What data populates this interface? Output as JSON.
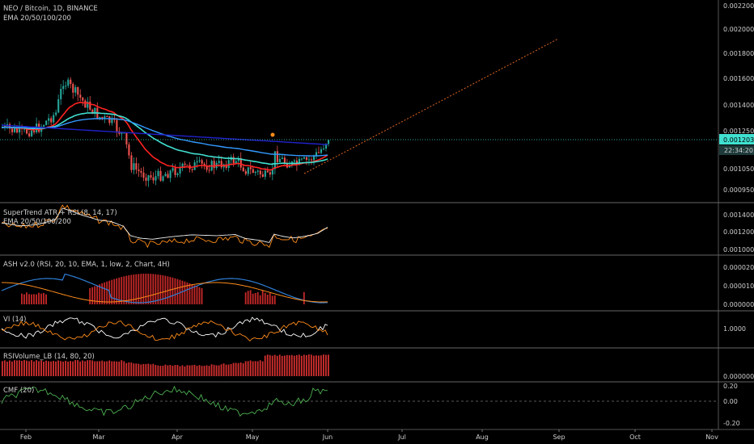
{
  "chart_data": [
    {
      "type": "candlestick",
      "title": "NEO / Bitcoin, 1D, BINANCE",
      "subtitle": "EMA 20/50/100/200",
      "x_ticks": [
        "Feb",
        "Mar",
        "Apr",
        "May",
        "Jun",
        "Jul",
        "Aug",
        "Sep",
        "Oct",
        "Nov"
      ],
      "y_ticks": [
        "0.002200",
        "0.002000",
        "0.001800",
        "0.001600",
        "0.001400",
        "0.001250",
        "0.001050",
        "0.000950"
      ],
      "ylim": [
        0.00089,
        0.00222
      ],
      "price_label": "0.001203",
      "time_label": "22:34:20",
      "last_price": 0.001203,
      "projection": {
        "from": [
          0.00099,
          "late May"
        ],
        "to": [
          0.0019,
          "early Sep"
        ]
      },
      "colors": {
        "up": "#26a69a",
        "down": "#ef5350",
        "ema20": "#ff2222",
        "ema50": "#40e0d0",
        "ema100": "#3399ff",
        "ema200": "#2222cc",
        "projection": "#e0641e"
      }
    },
    {
      "type": "line",
      "title": "SuperTrend ATR + RSI (8, 14, 17)",
      "subtitle": "EMA 20/50/100/200",
      "y_ticks": [
        "0.001400",
        "0.001200",
        "0.001000"
      ],
      "colors": {
        "rsi": "#ff8c1a",
        "ema": "#f0f0f0"
      }
    },
    {
      "type": "bar",
      "title": "ASH v2.0 (RSI, 20, 10, EMA, 1, low, 2, Chart, 4H)",
      "y_ticks": [
        "0.000020",
        "0.000010",
        "0.000000"
      ],
      "colors": {
        "hist": "#c62828",
        "bull": "#2f7fd6",
        "bear": "#ff8c1a"
      }
    },
    {
      "type": "line",
      "title": "VI (14)",
      "y_ticks": [
        "1.0000"
      ],
      "colors": {
        "plus": "#ffffff",
        "minus": "#ff8c1a"
      }
    },
    {
      "type": "bar",
      "title": "RSIVolume_LB (14, 80, 20)",
      "y_ticks": [
        "0.000000"
      ],
      "colors": {
        "bar": "#d32f2f"
      }
    },
    {
      "type": "line",
      "title": "CMF (20)",
      "y_ticks": [
        "0.20",
        "0.00",
        "-0.20"
      ],
      "colors": {
        "line": "#4caf50"
      }
    }
  ]
}
